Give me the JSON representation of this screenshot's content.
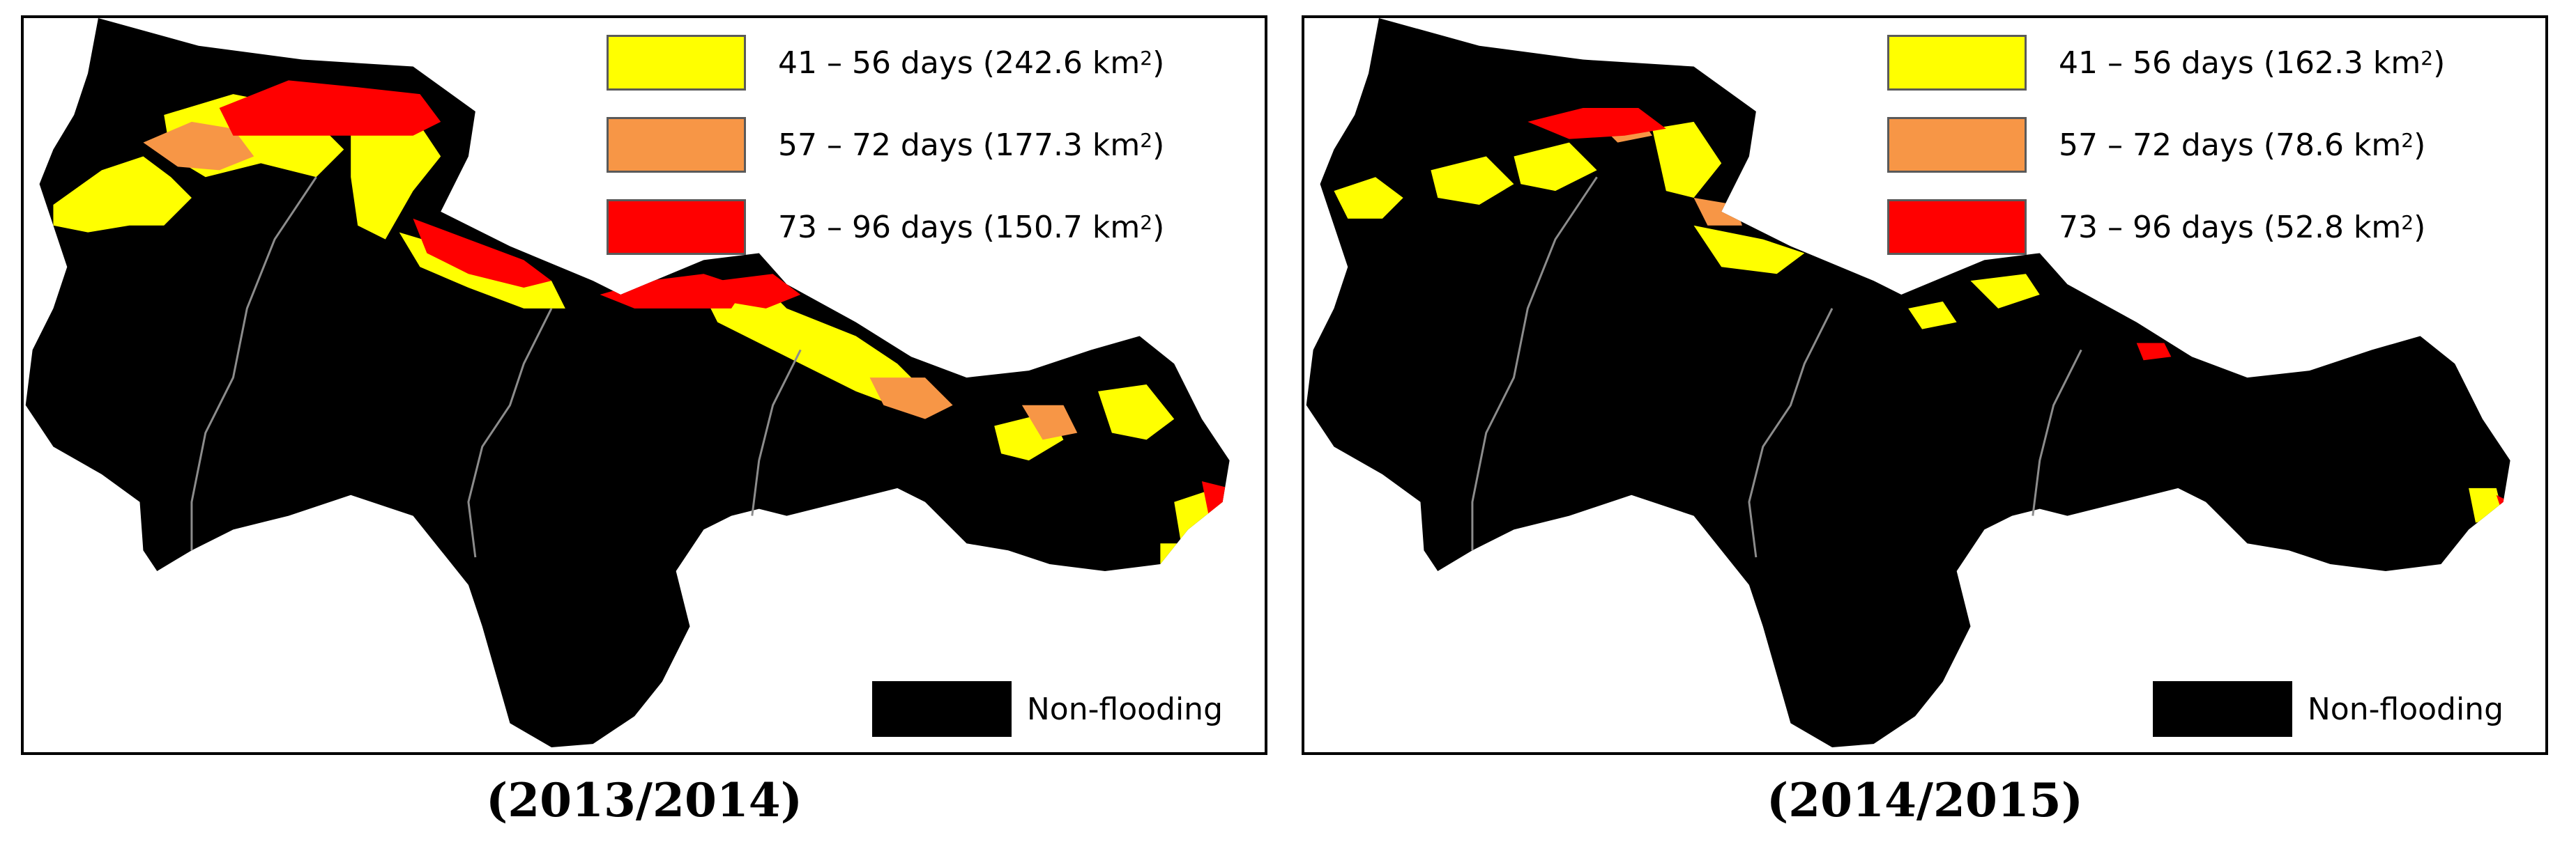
{
  "panels": [
    {
      "caption": "(2013/2014)",
      "legend": [
        {
          "range": "41 – 56 days",
          "area": "(242.6 km",
          "sup": "2",
          "close": ")",
          "color": "#ffff00"
        },
        {
          "range": "57 – 72 days",
          "area": "(177.3 km",
          "sup": "2",
          "close": ")",
          "color": "#f79646"
        },
        {
          "range": "73 – 96 days",
          "area": "(150.7 km",
          "sup": "2",
          "close": ")",
          "color": "#ff0000"
        }
      ],
      "non_flooding_label": "Non-flooding"
    },
    {
      "caption": "(2014/2015)",
      "legend": [
        {
          "range": "41 – 56 days",
          "area": "(162.3 km",
          "sup": "2",
          "close": ")",
          "color": "#ffff00"
        },
        {
          "range": "57 – 72 days",
          "area": "(78.6 km",
          "sup": "2",
          "close": ")",
          "color": "#f79646"
        },
        {
          "range": "73 – 96 days",
          "area": "(52.8 km",
          "sup": "2",
          "close": ")",
          "color": "#ff0000"
        }
      ],
      "non_flooding_label": "Non-flooding"
    }
  ],
  "colors": {
    "non_flooding": "#000000",
    "boundary_line": "#8c8c8c"
  }
}
